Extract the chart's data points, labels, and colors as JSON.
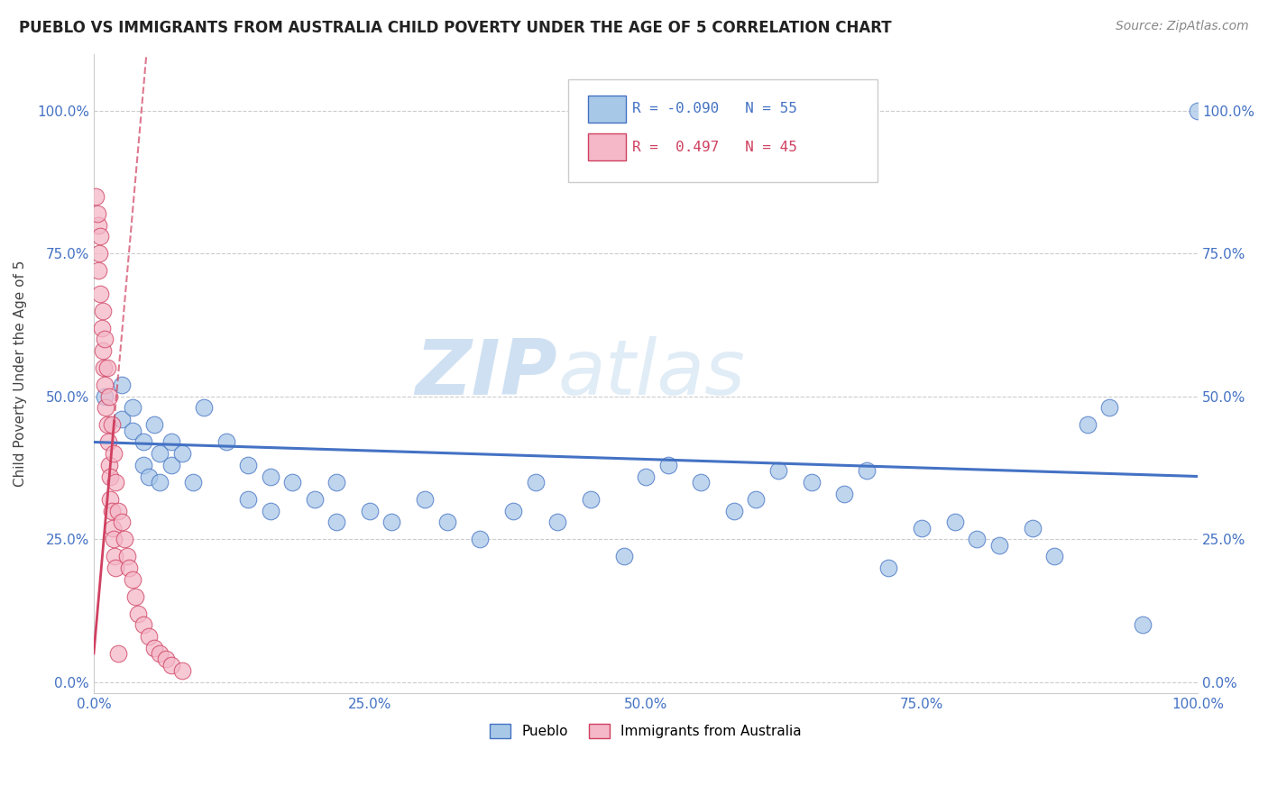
{
  "title": "PUEBLO VS IMMIGRANTS FROM AUSTRALIA CHILD POVERTY UNDER THE AGE OF 5 CORRELATION CHART",
  "source": "Source: ZipAtlas.com",
  "ylabel": "Child Poverty Under the Age of 5",
  "xlim": [
    0,
    100
  ],
  "ylim": [
    -2,
    110
  ],
  "blue_R": -0.09,
  "blue_N": 55,
  "pink_R": 0.497,
  "pink_N": 45,
  "blue_color": "#A8C8E8",
  "pink_color": "#F4B8C8",
  "blue_line_color": "#4472C4",
  "pink_line_color": "#D04060",
  "blue_scatter": [
    [
      1.0,
      50.0
    ],
    [
      2.5,
      52.0
    ],
    [
      2.5,
      46.0
    ],
    [
      3.5,
      48.0
    ],
    [
      3.5,
      44.0
    ],
    [
      4.5,
      42.0
    ],
    [
      4.5,
      38.0
    ],
    [
      5.0,
      36.0
    ],
    [
      5.5,
      45.0
    ],
    [
      6.0,
      40.0
    ],
    [
      6.0,
      35.0
    ],
    [
      7.0,
      42.0
    ],
    [
      7.0,
      38.0
    ],
    [
      8.0,
      40.0
    ],
    [
      9.0,
      35.0
    ],
    [
      10.0,
      48.0
    ],
    [
      12.0,
      42.0
    ],
    [
      14.0,
      38.0
    ],
    [
      14.0,
      32.0
    ],
    [
      16.0,
      36.0
    ],
    [
      16.0,
      30.0
    ],
    [
      18.0,
      35.0
    ],
    [
      20.0,
      32.0
    ],
    [
      22.0,
      35.0
    ],
    [
      22.0,
      28.0
    ],
    [
      25.0,
      30.0
    ],
    [
      27.0,
      28.0
    ],
    [
      30.0,
      32.0
    ],
    [
      32.0,
      28.0
    ],
    [
      35.0,
      25.0
    ],
    [
      38.0,
      30.0
    ],
    [
      40.0,
      35.0
    ],
    [
      42.0,
      28.0
    ],
    [
      45.0,
      32.0
    ],
    [
      48.0,
      22.0
    ],
    [
      50.0,
      36.0
    ],
    [
      52.0,
      38.0
    ],
    [
      55.0,
      35.0
    ],
    [
      58.0,
      30.0
    ],
    [
      60.0,
      32.0
    ],
    [
      62.0,
      37.0
    ],
    [
      65.0,
      35.0
    ],
    [
      68.0,
      33.0
    ],
    [
      70.0,
      37.0
    ],
    [
      72.0,
      20.0
    ],
    [
      75.0,
      27.0
    ],
    [
      78.0,
      28.0
    ],
    [
      80.0,
      25.0
    ],
    [
      82.0,
      24.0
    ],
    [
      85.0,
      27.0
    ],
    [
      87.0,
      22.0
    ],
    [
      90.0,
      45.0
    ],
    [
      92.0,
      48.0
    ],
    [
      95.0,
      10.0
    ],
    [
      100.0,
      100.0
    ]
  ],
  "pink_scatter": [
    [
      0.2,
      85.0
    ],
    [
      0.4,
      80.0
    ],
    [
      0.4,
      72.0
    ],
    [
      0.5,
      75.0
    ],
    [
      0.6,
      68.0
    ],
    [
      0.7,
      62.0
    ],
    [
      0.8,
      58.0
    ],
    [
      0.9,
      55.0
    ],
    [
      1.0,
      52.0
    ],
    [
      1.1,
      48.0
    ],
    [
      1.2,
      45.0
    ],
    [
      1.3,
      42.0
    ],
    [
      1.4,
      38.0
    ],
    [
      1.5,
      36.0
    ],
    [
      1.5,
      32.0
    ],
    [
      1.6,
      30.0
    ],
    [
      1.7,
      27.0
    ],
    [
      1.8,
      25.0
    ],
    [
      1.9,
      22.0
    ],
    [
      2.0,
      20.0
    ],
    [
      0.3,
      82.0
    ],
    [
      0.6,
      78.0
    ],
    [
      0.8,
      65.0
    ],
    [
      1.0,
      60.0
    ],
    [
      1.2,
      55.0
    ],
    [
      1.4,
      50.0
    ],
    [
      1.6,
      45.0
    ],
    [
      1.8,
      40.0
    ],
    [
      2.0,
      35.0
    ],
    [
      2.2,
      30.0
    ],
    [
      2.5,
      28.0
    ],
    [
      2.8,
      25.0
    ],
    [
      3.0,
      22.0
    ],
    [
      3.2,
      20.0
    ],
    [
      3.5,
      18.0
    ],
    [
      3.8,
      15.0
    ],
    [
      4.0,
      12.0
    ],
    [
      4.5,
      10.0
    ],
    [
      5.0,
      8.0
    ],
    [
      5.5,
      6.0
    ],
    [
      6.0,
      5.0
    ],
    [
      6.5,
      4.0
    ],
    [
      7.0,
      3.0
    ],
    [
      8.0,
      2.0
    ],
    [
      2.2,
      5.0
    ]
  ],
  "ytick_labels": [
    "0.0%",
    "25.0%",
    "50.0%",
    "75.0%",
    "100.0%"
  ],
  "ytick_values": [
    0,
    25,
    50,
    75,
    100
  ],
  "xtick_labels": [
    "0.0%",
    "25.0%",
    "50.0%",
    "75.0%",
    "100.0%"
  ],
  "xtick_values": [
    0,
    25,
    50,
    75,
    100
  ],
  "legend_blue_label": "Pueblo",
  "legend_pink_label": "Immigrants from Australia",
  "background_color": "#FFFFFF",
  "watermark_zip": "ZIP",
  "watermark_atlas": "atlas",
  "watermark_color": "#C8DDF0",
  "watermark_color2": "#C8DDF0"
}
